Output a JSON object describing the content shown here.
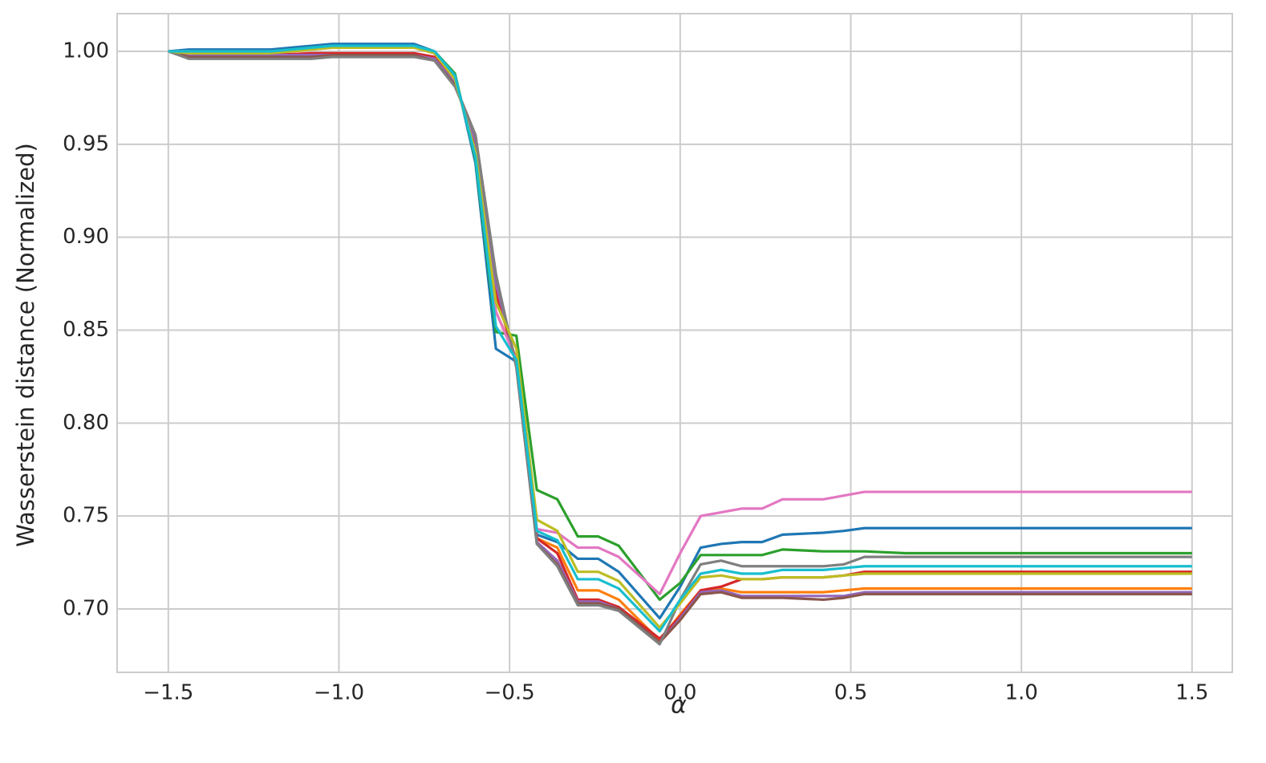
{
  "chart_data": {
    "type": "line",
    "x_label": "α",
    "y_label": "Wasserstein distance (Normalized)",
    "x": [
      -1.5,
      -1.44,
      -1.2,
      -1.08,
      -1.02,
      -0.78,
      -0.72,
      -0.66,
      -0.6,
      -0.54,
      -0.48,
      -0.42,
      -0.36,
      -0.3,
      -0.24,
      -0.18,
      -0.06,
      0.0,
      0.06,
      0.12,
      0.18,
      0.24,
      0.3,
      0.42,
      0.48,
      0.54,
      0.66,
      1.5
    ],
    "series": [
      {
        "color": "#1f77b4",
        "values": [
          1.0,
          1.001,
          1.001,
          1.003,
          1.004,
          1.004,
          1.0,
          0.988,
          0.94,
          0.84,
          0.833,
          0.74,
          0.736,
          0.727,
          0.727,
          0.72,
          0.695,
          0.712,
          0.733,
          0.735,
          0.736,
          0.736,
          0.74,
          0.741,
          0.742,
          0.7435,
          0.7435,
          0.7435
        ]
      },
      {
        "color": "#ff7f0e",
        "values": [
          1.0,
          0.999,
          0.999,
          1.001,
          1.002,
          1.002,
          0.999,
          0.985,
          0.945,
          0.86,
          0.835,
          0.738,
          0.733,
          0.71,
          0.71,
          0.705,
          0.683,
          0.697,
          0.71,
          0.711,
          0.709,
          0.709,
          0.709,
          0.709,
          0.71,
          0.711,
          0.711,
          0.711
        ]
      },
      {
        "color": "#2ca02c",
        "values": [
          1.0,
          1.0,
          1.0,
          1.002,
          1.003,
          1.003,
          1.0,
          0.988,
          0.942,
          0.849,
          0.847,
          0.764,
          0.759,
          0.739,
          0.739,
          0.734,
          0.705,
          0.714,
          0.729,
          0.729,
          0.729,
          0.729,
          0.732,
          0.731,
          0.731,
          0.731,
          0.73,
          0.73
        ]
      },
      {
        "color": "#d62728",
        "values": [
          1.0,
          0.998,
          0.998,
          0.999,
          0.999,
          0.999,
          0.997,
          0.983,
          0.95,
          0.87,
          0.833,
          0.738,
          0.73,
          0.705,
          0.705,
          0.701,
          0.684,
          0.696,
          0.71,
          0.712,
          0.716,
          0.716,
          0.717,
          0.717,
          0.718,
          0.72,
          0.72,
          0.72
        ]
      },
      {
        "color": "#9467bd",
        "values": [
          1.0,
          0.998,
          0.998,
          0.998,
          0.998,
          0.998,
          0.996,
          0.983,
          0.952,
          0.875,
          0.832,
          0.736,
          0.726,
          0.704,
          0.704,
          0.7,
          0.682,
          0.695,
          0.709,
          0.71,
          0.707,
          0.707,
          0.707,
          0.707,
          0.707,
          0.709,
          0.709,
          0.709
        ]
      },
      {
        "color": "#8c564b",
        "values": [
          1.0,
          0.997,
          0.997,
          0.997,
          0.998,
          0.998,
          0.995,
          0.982,
          0.955,
          0.88,
          0.83,
          0.735,
          0.724,
          0.703,
          0.703,
          0.7,
          0.682,
          0.694,
          0.708,
          0.709,
          0.706,
          0.706,
          0.706,
          0.705,
          0.706,
          0.708,
          0.708,
          0.708
        ]
      },
      {
        "color": "#e377c2",
        "values": [
          1.0,
          1.0,
          1.0,
          1.001,
          1.002,
          1.002,
          0.999,
          0.986,
          0.945,
          0.86,
          0.834,
          0.743,
          0.741,
          0.733,
          0.733,
          0.728,
          0.708,
          0.73,
          0.75,
          0.752,
          0.754,
          0.754,
          0.759,
          0.759,
          0.761,
          0.763,
          0.763,
          0.763
        ]
      },
      {
        "color": "#7f7f7f",
        "values": [
          1.0,
          0.996,
          0.996,
          0.996,
          0.997,
          0.997,
          0.995,
          0.981,
          0.955,
          0.88,
          0.83,
          0.735,
          0.723,
          0.702,
          0.702,
          0.699,
          0.681,
          0.705,
          0.724,
          0.726,
          0.723,
          0.723,
          0.723,
          0.723,
          0.724,
          0.728,
          0.728,
          0.728
        ]
      },
      {
        "color": "#bcbd22",
        "values": [
          1.0,
          0.999,
          0.999,
          1.001,
          1.002,
          1.002,
          0.999,
          0.985,
          0.946,
          0.865,
          0.84,
          0.748,
          0.742,
          0.72,
          0.72,
          0.715,
          0.69,
          0.703,
          0.717,
          0.718,
          0.716,
          0.716,
          0.717,
          0.717,
          0.718,
          0.719,
          0.719,
          0.719
        ]
      },
      {
        "color": "#17becf",
        "values": [
          1.0,
          1.0,
          1.0,
          1.002,
          1.003,
          1.003,
          1.0,
          0.987,
          0.943,
          0.852,
          0.834,
          0.742,
          0.737,
          0.716,
          0.716,
          0.711,
          0.688,
          0.705,
          0.719,
          0.721,
          0.719,
          0.719,
          0.721,
          0.721,
          0.722,
          0.723,
          0.723,
          0.723
        ]
      }
    ],
    "xlim": [
      -1.65,
      1.618
    ],
    "ylim": [
      0.6659,
      1.0203
    ],
    "xticks": [
      {
        "value": -1.5,
        "label": "−1.5"
      },
      {
        "value": -1.0,
        "label": "−1.0"
      },
      {
        "value": -0.5,
        "label": "−0.5"
      },
      {
        "value": 0.0,
        "label": "0.0"
      },
      {
        "value": 0.5,
        "label": "0.5"
      },
      {
        "value": 1.0,
        "label": "1.0"
      },
      {
        "value": 1.5,
        "label": "1.5"
      }
    ],
    "yticks": [
      {
        "value": 0.7,
        "label": "0.70"
      },
      {
        "value": 0.75,
        "label": "0.75"
      },
      {
        "value": 0.8,
        "label": "0.80"
      },
      {
        "value": 0.85,
        "label": "0.85"
      },
      {
        "value": 0.9,
        "label": "0.90"
      },
      {
        "value": 0.95,
        "label": "0.95"
      },
      {
        "value": 1.0,
        "label": "1.00"
      }
    ],
    "grid": true
  }
}
